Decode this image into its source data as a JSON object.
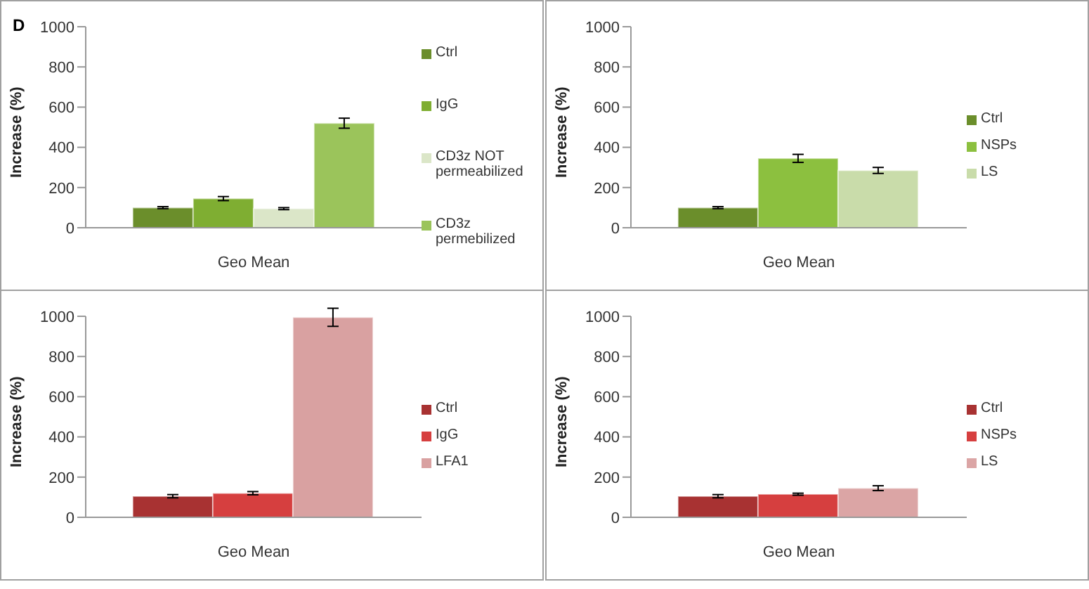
{
  "chart_data": [
    {
      "type": "bar",
      "annotations": [
        "D"
      ],
      "ylabel": "Increase (%)",
      "categories": [
        "Geo Mean"
      ],
      "ylim": [
        0,
        1000
      ],
      "yticks": [
        0,
        200,
        400,
        600,
        800,
        1000
      ],
      "legend": "right",
      "series": [
        {
          "name": "Ctrl",
          "color": "#6b8e2b",
          "values": [
            100
          ],
          "errors": [
            5
          ]
        },
        {
          "name": "IgG",
          "color": "#7fae32",
          "values": [
            145
          ],
          "errors": [
            10
          ]
        },
        {
          "name": "CD3z NOT permeabilized",
          "color": "#dbe6c8",
          "values": [
            95
          ],
          "errors": [
            5
          ]
        },
        {
          "name": "CD3z permebilized",
          "color": "#9bc45b",
          "values": [
            520
          ],
          "errors": [
            25
          ]
        }
      ]
    },
    {
      "type": "bar",
      "ylabel": "Increase (%)",
      "categories": [
        "Geo Mean"
      ],
      "ylim": [
        0,
        1000
      ],
      "yticks": [
        0,
        200,
        400,
        600,
        800,
        1000
      ],
      "legend": "right",
      "series": [
        {
          "name": "Ctrl",
          "color": "#6b8e2b",
          "values": [
            100
          ],
          "errors": [
            5
          ]
        },
        {
          "name": "NSPs",
          "color": "#8cc03f",
          "values": [
            345
          ],
          "errors": [
            20
          ]
        },
        {
          "name": "LS",
          "color": "#c9dcaa",
          "values": [
            285
          ],
          "errors": [
            15
          ]
        }
      ]
    },
    {
      "type": "bar",
      "ylabel": "Increase (%)",
      "categories": [
        "Geo Mean"
      ],
      "ylim": [
        0,
        1000
      ],
      "yticks": [
        0,
        200,
        400,
        600,
        800,
        1000
      ],
      "legend": "right",
      "series": [
        {
          "name": "Ctrl",
          "color": "#a83232",
          "values": [
            105
          ],
          "errors": [
            8
          ]
        },
        {
          "name": "IgG",
          "color": "#d63f3f",
          "values": [
            120
          ],
          "errors": [
            8
          ]
        },
        {
          "name": "LFA1",
          "color": "#d9a1a1",
          "values": [
            995
          ],
          "errors": [
            45
          ]
        }
      ]
    },
    {
      "type": "bar",
      "ylabel": "Increase (%)",
      "categories": [
        "Geo Mean"
      ],
      "ylim": [
        0,
        1000
      ],
      "yticks": [
        0,
        200,
        400,
        600,
        800,
        1000
      ],
      "legend": "right",
      "series": [
        {
          "name": "Ctrl",
          "color": "#a83232",
          "values": [
            105
          ],
          "errors": [
            8
          ]
        },
        {
          "name": "NSPs",
          "color": "#d63f3f",
          "values": [
            115
          ],
          "errors": [
            5
          ]
        },
        {
          "name": "LS",
          "color": "#dba5a5",
          "values": [
            145
          ],
          "errors": [
            12
          ]
        }
      ]
    }
  ]
}
